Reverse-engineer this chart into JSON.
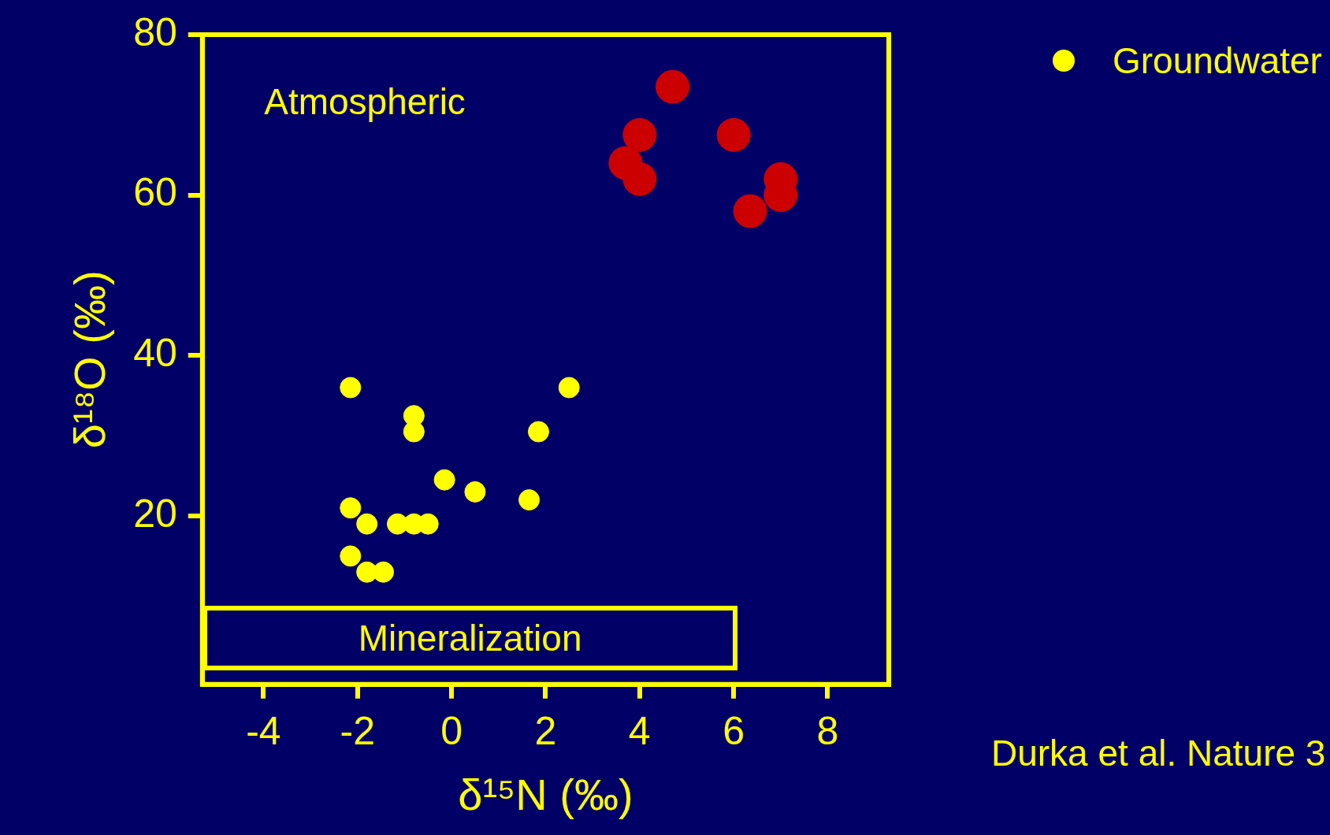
{
  "chart_data": {
    "type": "scatter",
    "xlabel": "δ¹⁵N (‰)",
    "ylabel": "δ¹⁸O (‰)",
    "series": [
      {
        "name": "Groundwater",
        "color": "#ffff00",
        "x": [
          -2.15,
          2.5,
          -0.8,
          -0.8,
          1.85,
          -0.15,
          0.5,
          1.65,
          -2.15,
          -1.8,
          -1.15,
          -0.8,
          -0.5,
          -2.15,
          -1.8,
          -1.45
        ],
        "values": [
          36,
          36,
          32.5,
          30.5,
          30.5,
          24.5,
          23,
          22,
          21,
          19,
          19,
          19,
          19,
          15,
          13,
          13
        ]
      },
      {
        "color": "#cc0000",
        "x": [
          4.7,
          4.0,
          6.0,
          3.7,
          4.0,
          7.0,
          7.0,
          6.35
        ],
        "values": [
          73.5,
          67.5,
          67.5,
          64,
          62,
          62,
          60,
          58
        ]
      }
    ],
    "xlim": [
      -5.3,
      9.3
    ],
    "xticks": [
      -4,
      -2,
      0,
      2,
      4,
      6,
      8
    ],
    "ylim": [
      -1,
      80
    ],
    "yticks": [
      20,
      40,
      60,
      80
    ],
    "grid": false,
    "legend": "top right",
    "marker": "circle",
    "annotations": [
      "Atmospheric",
      "Mineralization",
      "Durka et al. Nature 3"
    ]
  }
}
